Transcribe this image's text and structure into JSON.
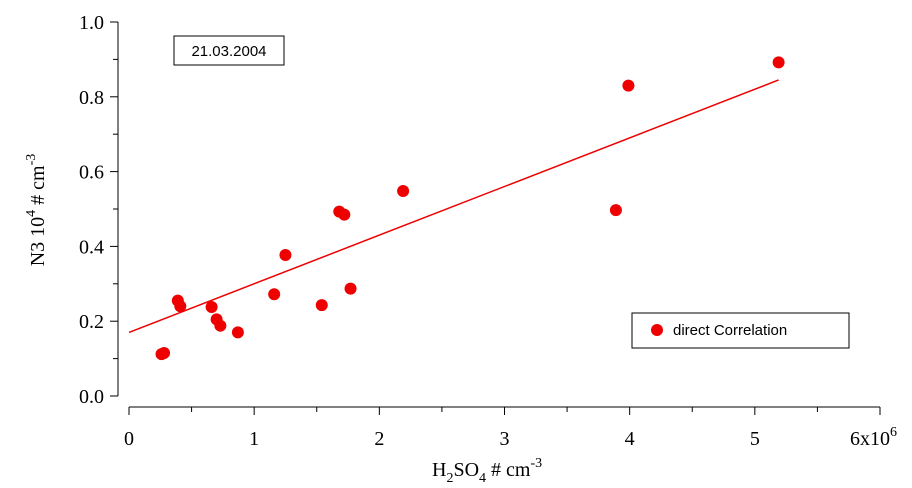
{
  "chart_data": {
    "type": "scatter",
    "date_label": "21.03.2004",
    "xlabel": {
      "main": "H",
      "sub": "2",
      "mid": "SO",
      "sub2": "4",
      "tail": " # cm",
      "sup": "-3"
    },
    "ylabel": {
      "main": "N3 10",
      "sup1": "4",
      "mid": " # cm",
      "sup2": "-3"
    },
    "xlim": [
      0,
      6000000
    ],
    "ylim": [
      0,
      1.0
    ],
    "x_ticks": [
      {
        "v": 0,
        "label": "0"
      },
      {
        "v": 1000000,
        "label": "1"
      },
      {
        "v": 2000000,
        "label": "2"
      },
      {
        "v": 3000000,
        "label": "3"
      },
      {
        "v": 4000000,
        "label": "4"
      },
      {
        "v": 5000000,
        "label": "5"
      },
      {
        "v": 6000000,
        "label": "6x10",
        "sup": "6"
      }
    ],
    "y_ticks": [
      {
        "v": 0.0,
        "label": "0.0"
      },
      {
        "v": 0.2,
        "label": "0.2"
      },
      {
        "v": 0.4,
        "label": "0.4"
      },
      {
        "v": 0.6,
        "label": "0.6"
      },
      {
        "v": 0.8,
        "label": "0.8"
      },
      {
        "v": 1.0,
        "label": "1.0"
      }
    ],
    "series": [
      {
        "name": "direct Correlation",
        "color": "#ee0000",
        "points": [
          [
            260000,
            0.112
          ],
          [
            280000,
            0.115
          ],
          [
            390000,
            0.255
          ],
          [
            410000,
            0.24
          ],
          [
            660000,
            0.238
          ],
          [
            700000,
            0.205
          ],
          [
            730000,
            0.188
          ],
          [
            870000,
            0.17
          ],
          [
            1160000,
            0.272
          ],
          [
            1250000,
            0.377
          ],
          [
            1540000,
            0.243
          ],
          [
            1680000,
            0.493
          ],
          [
            1720000,
            0.485
          ],
          [
            1770000,
            0.287
          ],
          [
            2190000,
            0.548
          ],
          [
            3890000,
            0.497
          ],
          [
            3990000,
            0.83
          ],
          [
            5190000,
            0.892
          ]
        ]
      }
    ],
    "fit_line": {
      "x": [
        0,
        5190000
      ],
      "y": [
        0.17,
        0.845
      ],
      "color": "#ee0000"
    },
    "legend": {
      "position": "bottom-right",
      "label": "direct Correlation"
    }
  }
}
